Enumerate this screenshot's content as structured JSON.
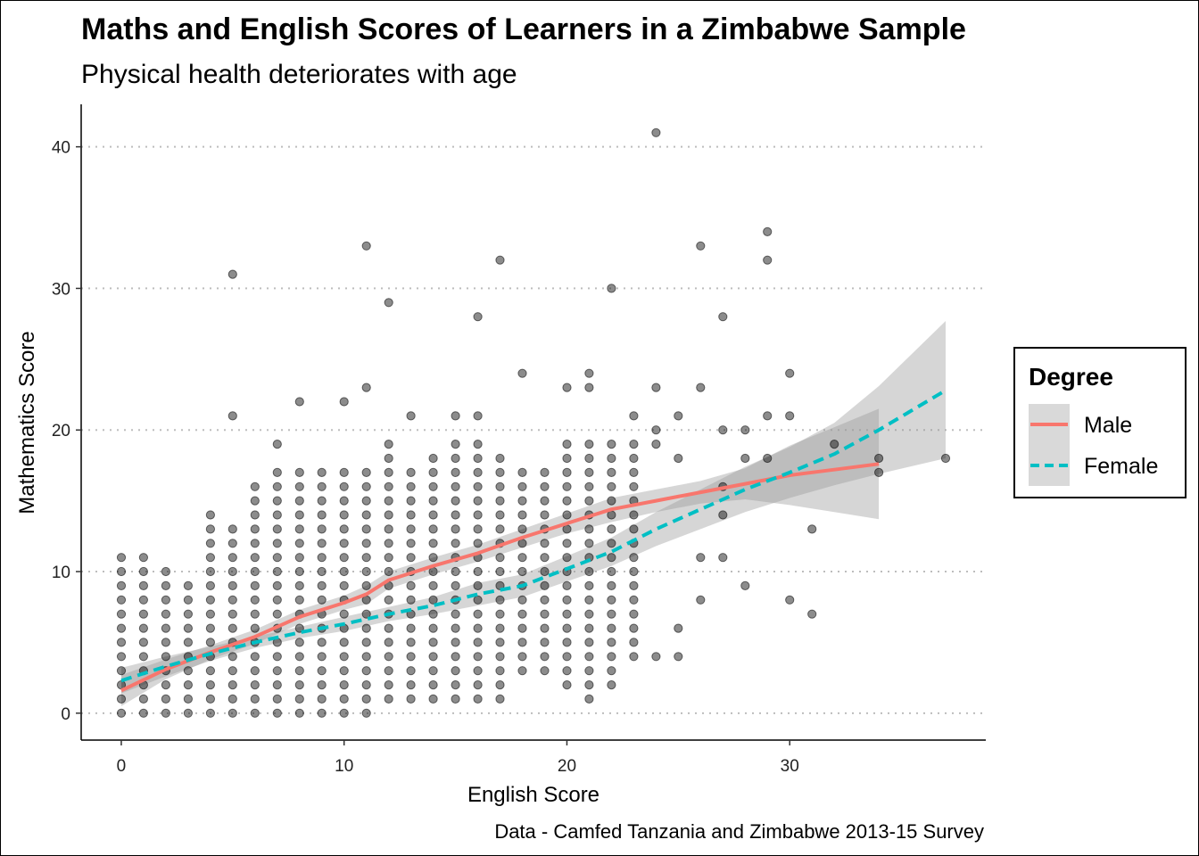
{
  "chart_data": {
    "type": "scatter",
    "title": "Maths and English Scores of Learners in a Zimbabwe Sample",
    "subtitle": "Physical health deteriorates with age",
    "xlabel": "English Score",
    "ylabel": "Mathematics Score",
    "caption": "Data - Camfed Tanzania and Zimbabwe 2013-15 Survey",
    "xlim": [
      -1.8,
      38.8
    ],
    "ylim": [
      -1.9,
      43.0
    ],
    "x_ticks": [
      0,
      10,
      20,
      30
    ],
    "y_ticks": [
      0,
      10,
      20,
      30,
      40
    ],
    "x_tick_labels": [
      "0",
      "10",
      "20",
      "30"
    ],
    "y_tick_labels": [
      "0",
      "10",
      "20",
      "30",
      "40"
    ],
    "grid": "major-y dotted",
    "legend_position": "right",
    "legend": {
      "title": "Degree",
      "entries": [
        {
          "label": "Male",
          "color": "#F8766D",
          "dash": "solid"
        },
        {
          "label": "Female",
          "color": "#00BFC4",
          "dash": "dashed"
        }
      ]
    },
    "points": {
      "color": "#000000",
      "opacity": 0.45,
      "dense_block": {
        "column_max_y": [
          11,
          11,
          10,
          9,
          14,
          13,
          16,
          19,
          22,
          17,
          22,
          23,
          19,
          17,
          18,
          21,
          21,
          20,
          17,
          16,
          23,
          24,
          19,
          21
        ],
        "column_min_y": [
          0,
          0,
          0,
          0,
          0,
          0,
          0,
          0,
          0,
          0,
          0,
          0,
          1,
          1,
          1,
          1,
          1,
          1,
          3,
          3,
          2,
          1,
          2,
          4
        ]
      },
      "outliers": [
        [
          5,
          31
        ],
        [
          5,
          21
        ],
        [
          11,
          33
        ],
        [
          12,
          29
        ],
        [
          16,
          28
        ],
        [
          17,
          32
        ],
        [
          18,
          24
        ],
        [
          22,
          30
        ],
        [
          24,
          41
        ],
        [
          24,
          23
        ],
        [
          24,
          20
        ],
        [
          24,
          19
        ],
        [
          24,
          4
        ],
        [
          25,
          4
        ],
        [
          25,
          21
        ],
        [
          25,
          18
        ],
        [
          25,
          6
        ],
        [
          26,
          33
        ],
        [
          26,
          23
        ],
        [
          26,
          11
        ],
        [
          26,
          8
        ],
        [
          27,
          28
        ],
        [
          27,
          20
        ],
        [
          27,
          16
        ],
        [
          27,
          14
        ],
        [
          27,
          11
        ],
        [
          28,
          20
        ],
        [
          28,
          18
        ],
        [
          28,
          9
        ],
        [
          29,
          34
        ],
        [
          29,
          32
        ],
        [
          29,
          21
        ],
        [
          29,
          18
        ],
        [
          30,
          24
        ],
        [
          30,
          21
        ],
        [
          30,
          8
        ],
        [
          31,
          13
        ],
        [
          31,
          7
        ],
        [
          32,
          19
        ],
        [
          34,
          18
        ],
        [
          34,
          17
        ],
        [
          37,
          18
        ],
        [
          23,
          21
        ],
        [
          23,
          17
        ],
        [
          23,
          16
        ],
        [
          23,
          7
        ],
        [
          23,
          5
        ],
        [
          23,
          4
        ],
        [
          22,
          8
        ],
        [
          22,
          4
        ],
        [
          22,
          2
        ],
        [
          21,
          24
        ],
        [
          21,
          23
        ],
        [
          21,
          19
        ],
        [
          21,
          17
        ],
        [
          21,
          10
        ],
        [
          21,
          5
        ],
        [
          20,
          23
        ],
        [
          20,
          2
        ],
        [
          19,
          16
        ],
        [
          19,
          4
        ],
        [
          19,
          3
        ],
        [
          15,
          1
        ],
        [
          11,
          0
        ],
        [
          7,
          19
        ],
        [
          8,
          22
        ],
        [
          10,
          22
        ],
        [
          11,
          23
        ],
        [
          12,
          19
        ],
        [
          13,
          21
        ],
        [
          14,
          18
        ],
        [
          15,
          21
        ],
        [
          15,
          19
        ],
        [
          16,
          21
        ],
        [
          16,
          19
        ],
        [
          17,
          17
        ],
        [
          18,
          17
        ],
        [
          19,
          17
        ],
        [
          20,
          16
        ],
        [
          0,
          11
        ],
        [
          0,
          7
        ],
        [
          1,
          11
        ],
        [
          1,
          10
        ],
        [
          2,
          10
        ],
        [
          3,
          9
        ],
        [
          4,
          14
        ],
        [
          5,
          13
        ],
        [
          6,
          16
        ],
        [
          7,
          17
        ],
        [
          9,
          17
        ],
        [
          10,
          17
        ]
      ]
    },
    "series": [
      {
        "name": "Male",
        "color": "#F8766D",
        "x": [
          0,
          2,
          4,
          6,
          8,
          10,
          11,
          12,
          14,
          16,
          18,
          20,
          22,
          24,
          26,
          28,
          30,
          32,
          34
        ],
        "y": [
          1.6,
          3.1,
          4.3,
          5.4,
          6.8,
          7.8,
          8.4,
          9.4,
          10.4,
          11.3,
          12.4,
          13.4,
          14.4,
          15.0,
          15.6,
          16.2,
          16.8,
          17.2,
          17.6
        ],
        "ci_low": [
          0.5,
          2.4,
          3.8,
          4.9,
          6.3,
          7.3,
          7.7,
          8.8,
          9.8,
          10.7,
          11.7,
          12.7,
          13.5,
          14.2,
          14.8,
          15.1,
          14.7,
          14.2,
          13.7
        ],
        "ci_high": [
          2.7,
          3.8,
          4.8,
          5.9,
          7.3,
          8.3,
          9.0,
          10.0,
          11.0,
          11.9,
          13.0,
          14.1,
          15.2,
          15.8,
          16.4,
          17.3,
          18.9,
          20.2,
          21.5
        ]
      },
      {
        "name": "Female",
        "color": "#00BFC4",
        "x": [
          0,
          2,
          4,
          6,
          8,
          10,
          12,
          14,
          16,
          18,
          20,
          22,
          24,
          26,
          28,
          30,
          32,
          34,
          37
        ],
        "y": [
          2.3,
          3.3,
          4.2,
          5.0,
          5.7,
          6.3,
          7.0,
          7.6,
          8.4,
          9.0,
          10.2,
          11.4,
          13.0,
          14.4,
          15.8,
          17.0,
          18.3,
          20.0,
          22.8
        ],
        "ci_low": [
          1.4,
          2.6,
          3.7,
          4.6,
          5.3,
          5.8,
          6.5,
          7.0,
          7.6,
          8.2,
          9.3,
          10.4,
          11.8,
          13.0,
          14.2,
          15.2,
          16.1,
          16.9,
          18.0
        ],
        "ci_high": [
          3.2,
          4.0,
          4.7,
          5.4,
          6.1,
          6.8,
          7.5,
          8.2,
          9.2,
          9.8,
          11.1,
          12.4,
          14.2,
          15.8,
          17.4,
          18.8,
          20.5,
          23.1,
          27.7
        ]
      }
    ]
  }
}
